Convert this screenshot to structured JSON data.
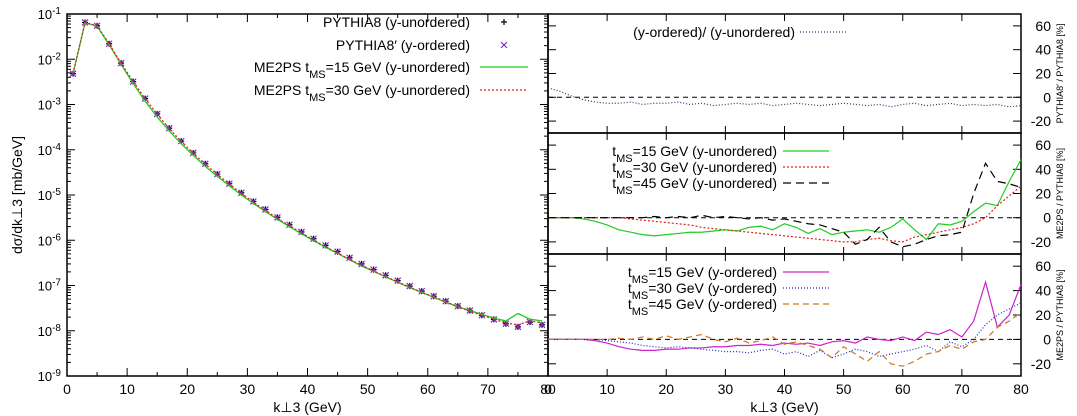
{
  "chart_data": [
    {
      "type": "line",
      "panel": "main",
      "ylabel": "dσ/dk⊥3  [mb/GeV]",
      "xlabel": "k⊥3 (GeV)",
      "xlim": [
        0,
        80
      ],
      "ylim_exp": [
        -9,
        -1
      ],
      "yscale": "log",
      "xticks": [
        "0",
        "10",
        "20",
        "30",
        "40",
        "50",
        "60",
        "70",
        "80"
      ],
      "legend_position": "top-right",
      "series": [
        {
          "name": "PYTHIA8 (y-unordered)",
          "marker": "plus",
          "color": "#000000",
          "x": [
            1,
            3,
            5,
            7,
            9,
            11,
            13,
            15,
            17,
            19,
            21,
            23,
            25,
            27,
            29,
            31,
            33,
            35,
            37,
            39,
            41,
            43,
            45,
            47,
            49,
            51,
            53,
            55,
            57,
            59,
            61,
            63,
            65,
            67,
            69,
            71,
            73,
            75,
            77,
            79
          ],
          "y": [
            0.0048,
            0.065,
            0.055,
            0.022,
            0.0082,
            0.0032,
            0.00135,
            0.00062,
            0.0003,
            0.000155,
            8.5e-05,
            4.9e-05,
            2.9e-05,
            1.78e-05,
            1.12e-05,
            7.2e-06,
            4.8e-06,
            3.2e-06,
            2.2e-06,
            1.53e-06,
            1.08e-06,
            7.7e-07,
            5.6e-07,
            4.1e-07,
            3e-07,
            2.24e-07,
            1.68e-07,
            1.28e-07,
            9.7e-08,
            7.5e-08,
            5.8e-08,
            4.5e-08,
            3.5e-08,
            2.8e-08,
            2.2e-08,
            1.78e-08,
            1.43e-08,
            1.22e-08,
            1.55e-08,
            1.35e-08
          ]
        },
        {
          "name": "PYTHIA8′ (y-ordered)",
          "marker": "cross",
          "color": "#7a2fbf",
          "x": [
            1,
            3,
            5,
            7,
            9,
            11,
            13,
            15,
            17,
            19,
            21,
            23,
            25,
            27,
            29,
            31,
            33,
            35,
            37,
            39,
            41,
            43,
            45,
            47,
            49,
            51,
            53,
            55,
            57,
            59,
            61,
            63,
            65,
            67,
            69,
            71,
            73,
            75,
            77,
            79
          ],
          "y": [
            0.0048,
            0.065,
            0.055,
            0.022,
            0.0082,
            0.0032,
            0.00135,
            0.00062,
            0.0003,
            0.000155,
            8.5e-05,
            4.9e-05,
            2.9e-05,
            1.78e-05,
            1.12e-05,
            7.2e-06,
            4.8e-06,
            3.2e-06,
            2.2e-06,
            1.53e-06,
            1.08e-06,
            7.7e-07,
            5.6e-07,
            4.1e-07,
            3e-07,
            2.24e-07,
            1.68e-07,
            1.28e-07,
            9.7e-08,
            7.5e-08,
            5.8e-08,
            4.5e-08,
            3.5e-08,
            2.8e-08,
            2.2e-08,
            1.78e-08,
            1.43e-08,
            1.22e-08,
            1.55e-08,
            1.35e-08
          ]
        },
        {
          "name": "ME2PS tMS=15 GeV (y-unordered)",
          "marker": "line",
          "color": "#22cc22",
          "dash": "",
          "x": [
            1,
            3,
            5,
            7,
            9,
            11,
            13,
            15,
            17,
            19,
            21,
            23,
            25,
            27,
            29,
            31,
            33,
            35,
            37,
            39,
            41,
            43,
            45,
            47,
            49,
            51,
            53,
            55,
            57,
            59,
            61,
            63,
            65,
            67,
            69,
            71,
            73,
            75,
            77,
            79
          ],
          "y": [
            0.0048,
            0.064,
            0.054,
            0.021,
            0.0077,
            0.0029,
            0.00118,
            0.00053,
            0.00026,
            0.000135,
            7.5e-05,
            4.3e-05,
            2.58e-05,
            1.59e-05,
            1e-05,
            6.5e-06,
            4.3e-06,
            2.9e-06,
            2e-06,
            1.39e-06,
            9.8e-07,
            7e-07,
            5.1e-07,
            3.7e-07,
            2.7e-07,
            2.05e-07,
            1.55e-07,
            1.18e-07,
            9e-08,
            7e-08,
            5.5e-08,
            4.3e-08,
            3.4e-08,
            2.8e-08,
            2.3e-08,
            1.9e-08,
            1.65e-08,
            2.4e-08,
            1.8e-08,
            1.65e-08
          ]
        },
        {
          "name": "ME2PS tMS=30 GeV (y-unordered)",
          "marker": "line",
          "color": "#dd2222",
          "dash": "2,2",
          "x": [
            1,
            3,
            5,
            7,
            9,
            11,
            13,
            15,
            17,
            19,
            21,
            23,
            25,
            27,
            29,
            31,
            33,
            35,
            37,
            39,
            41,
            43,
            45,
            47,
            49,
            51,
            53,
            55,
            57,
            59,
            61,
            63,
            65,
            67,
            69,
            71,
            73,
            75,
            77,
            79
          ],
          "y": [
            0.0048,
            0.065,
            0.055,
            0.022,
            0.0082,
            0.0032,
            0.00134,
            0.00061,
            0.000295,
            0.000152,
            8.3e-05,
            4.8e-05,
            2.85e-05,
            1.75e-05,
            1.08e-05,
            6.9e-06,
            4.6e-06,
            3e-06,
            2.1e-06,
            1.45e-06,
            1.01e-06,
            7.2e-07,
            5.2e-07,
            3.8e-07,
            2.8e-07,
            2.09e-07,
            1.58e-07,
            1.2e-07,
            9.2e-08,
            7.1e-08,
            5.6e-08,
            4.4e-08,
            3.4e-08,
            2.7e-08,
            2.2e-08,
            1.8e-08,
            1.48e-08,
            1.35e-08,
            1.65e-08,
            1.5e-08
          ]
        }
      ]
    },
    {
      "type": "line",
      "panel": "ratio-top",
      "ylabel": "PYTHIA8′ / PYTHIA8 [%]",
      "xlim": [
        0,
        80
      ],
      "ylim": [
        -30,
        70
      ],
      "yticks": [
        "60",
        "40",
        "20",
        "0",
        "-20"
      ],
      "series": [
        {
          "name": "(y-ordered)/ (y-unordered)",
          "color": "#333366",
          "dash": "1,2",
          "x": [
            0,
            2,
            4,
            6,
            8,
            10,
            12,
            14,
            16,
            18,
            20,
            22,
            24,
            26,
            28,
            30,
            32,
            34,
            36,
            38,
            40,
            42,
            44,
            46,
            48,
            50,
            52,
            54,
            56,
            58,
            60,
            62,
            64,
            66,
            68,
            70,
            72,
            74,
            76,
            78,
            80
          ],
          "y": [
            8,
            5,
            1,
            -2,
            -4,
            -5,
            -5,
            -4,
            -6,
            -5,
            -5,
            -4,
            -6,
            -5,
            -7,
            -6,
            -5,
            -6,
            -5,
            -7,
            -6,
            -5,
            -6,
            -7,
            -6,
            -5,
            -6,
            -7,
            -6,
            -8,
            -6,
            -5,
            -7,
            -6,
            -5,
            -7,
            -6,
            -7,
            -6,
            -8,
            -7
          ]
        }
      ]
    },
    {
      "type": "line",
      "panel": "ratio-middle",
      "ylabel": "ME2PS / PYTHIA8 [%]",
      "xlim": [
        0,
        80
      ],
      "ylim": [
        -30,
        70
      ],
      "yticks": [
        "60",
        "40",
        "20",
        "0",
        "-20"
      ],
      "series": [
        {
          "name": "tMS=15 GeV (y-unordered)",
          "color": "#22cc22",
          "dash": "",
          "x": [
            0,
            2,
            4,
            6,
            8,
            10,
            12,
            14,
            16,
            18,
            20,
            22,
            24,
            26,
            28,
            30,
            32,
            34,
            36,
            38,
            40,
            42,
            44,
            46,
            48,
            50,
            52,
            54,
            56,
            58,
            60,
            62,
            64,
            66,
            68,
            70,
            72,
            74,
            76,
            78,
            80
          ],
          "y": [
            0,
            0,
            0,
            -1,
            -3,
            -6,
            -10,
            -12,
            -14,
            -15,
            -14,
            -13,
            -12,
            -12,
            -11,
            -10,
            -11,
            -8,
            -7,
            -10,
            -5,
            -8,
            -13,
            -9,
            -14,
            -12,
            -11,
            -10,
            -12,
            -8,
            -1,
            -10,
            -18,
            -5,
            -6,
            -3,
            5,
            12,
            10,
            30,
            48
          ]
        },
        {
          "name": "tMS=30 GeV (y-unordered)",
          "color": "#dd2222",
          "dash": "2,2",
          "x": [
            0,
            2,
            4,
            6,
            8,
            10,
            12,
            14,
            16,
            18,
            20,
            22,
            24,
            26,
            28,
            30,
            32,
            34,
            36,
            38,
            40,
            42,
            44,
            46,
            48,
            50,
            52,
            54,
            56,
            58,
            60,
            62,
            64,
            66,
            68,
            70,
            72,
            74,
            76,
            78,
            80
          ],
          "y": [
            0,
            0,
            0,
            0,
            0,
            0,
            0,
            -1,
            -2,
            -3,
            -4,
            -5,
            -6,
            -8,
            -9,
            -10,
            -11,
            -12,
            -13,
            -14,
            -15,
            -16,
            -17,
            -18,
            -19,
            -20,
            -20,
            -18,
            -17,
            -19,
            -20,
            -16,
            -14,
            -12,
            -10,
            -8,
            -5,
            0,
            10,
            18,
            26
          ]
        },
        {
          "name": "tMS=45 GeV (y-unordered)",
          "color": "#000000",
          "dash": "8,5",
          "x": [
            0,
            2,
            4,
            6,
            8,
            10,
            12,
            14,
            16,
            18,
            20,
            22,
            24,
            26,
            28,
            30,
            32,
            34,
            36,
            38,
            40,
            42,
            44,
            46,
            48,
            50,
            52,
            54,
            56,
            58,
            60,
            62,
            64,
            66,
            68,
            70,
            72,
            74,
            76,
            78,
            80
          ],
          "y": [
            0,
            0,
            0,
            0,
            0,
            0,
            0,
            0,
            0,
            1,
            0,
            1,
            0,
            2,
            0,
            1,
            0,
            -1,
            0,
            -2,
            -1,
            -3,
            -5,
            -6,
            -9,
            -12,
            -22,
            -18,
            -8,
            -20,
            -24,
            -22,
            -18,
            -15,
            -14,
            -12,
            20,
            45,
            30,
            28,
            25
          ]
        }
      ]
    },
    {
      "type": "line",
      "panel": "ratio-bottom",
      "ylabel": "ME2PS / PYTHIA8 [%]",
      "xlabel": "k⊥3 (GeV)",
      "xlim": [
        0,
        80
      ],
      "ylim": [
        -30,
        70
      ],
      "xticks": [
        "0",
        "10",
        "20",
        "30",
        "40",
        "50",
        "60",
        "70",
        "80"
      ],
      "yticks": [
        "60",
        "40",
        "20",
        "0",
        "-20"
      ],
      "series": [
        {
          "name": "tMS=15 GeV (y-ordered)",
          "color": "#cc22cc",
          "dash": "",
          "x": [
            0,
            2,
            4,
            6,
            8,
            10,
            12,
            14,
            16,
            18,
            20,
            22,
            24,
            26,
            28,
            30,
            32,
            34,
            36,
            38,
            40,
            42,
            44,
            46,
            48,
            50,
            52,
            54,
            56,
            58,
            60,
            62,
            64,
            66,
            68,
            70,
            72,
            74,
            76,
            78,
            80
          ],
          "y": [
            0,
            0,
            0,
            0,
            -1,
            -3,
            -6,
            -8,
            -9,
            -9,
            -8,
            -8,
            -7,
            -7,
            -6,
            -6,
            -5,
            -5,
            -4,
            -5,
            -3,
            -4,
            -3,
            -5,
            -2,
            -1,
            -3,
            2,
            0,
            -1,
            2,
            -1,
            6,
            4,
            8,
            2,
            15,
            47,
            10,
            20,
            45
          ]
        },
        {
          "name": "tMS=30 GeV (y-ordered)",
          "color": "#2222cc",
          "dash": "1,2",
          "x": [
            0,
            2,
            4,
            6,
            8,
            10,
            12,
            14,
            16,
            18,
            20,
            22,
            24,
            26,
            28,
            30,
            32,
            34,
            36,
            38,
            40,
            42,
            44,
            46,
            48,
            50,
            52,
            54,
            56,
            58,
            60,
            62,
            64,
            66,
            68,
            70,
            72,
            74,
            76,
            78,
            80
          ],
          "y": [
            0,
            0,
            0,
            0,
            0,
            -1,
            -2,
            -3,
            -5,
            -6,
            -7,
            -6,
            -7,
            -8,
            -9,
            -10,
            -10,
            -11,
            -9,
            -8,
            -12,
            -10,
            -14,
            -9,
            -15,
            -12,
            -8,
            -10,
            -14,
            -12,
            -10,
            -8,
            -5,
            -10,
            -2,
            -6,
            0,
            12,
            20,
            25,
            30
          ]
        },
        {
          "name": "tMS=45 GeV (y-ordered)",
          "color": "#cc7722",
          "dash": "6,4",
          "x": [
            0,
            2,
            4,
            6,
            8,
            10,
            12,
            14,
            16,
            18,
            20,
            22,
            24,
            26,
            28,
            30,
            32,
            34,
            36,
            38,
            40,
            42,
            44,
            46,
            48,
            50,
            52,
            54,
            56,
            58,
            60,
            62,
            64,
            66,
            68,
            70,
            72,
            74,
            76,
            78,
            80
          ],
          "y": [
            0,
            0,
            0,
            0,
            0,
            0,
            1,
            0,
            2,
            0,
            3,
            0,
            2,
            4,
            0,
            -2,
            1,
            -3,
            -1,
            2,
            -4,
            -2,
            -5,
            -8,
            -15,
            -6,
            -12,
            -18,
            -10,
            -20,
            -22,
            -18,
            -12,
            -10,
            -5,
            -8,
            -2,
            0,
            10,
            15,
            22
          ]
        }
      ]
    }
  ]
}
